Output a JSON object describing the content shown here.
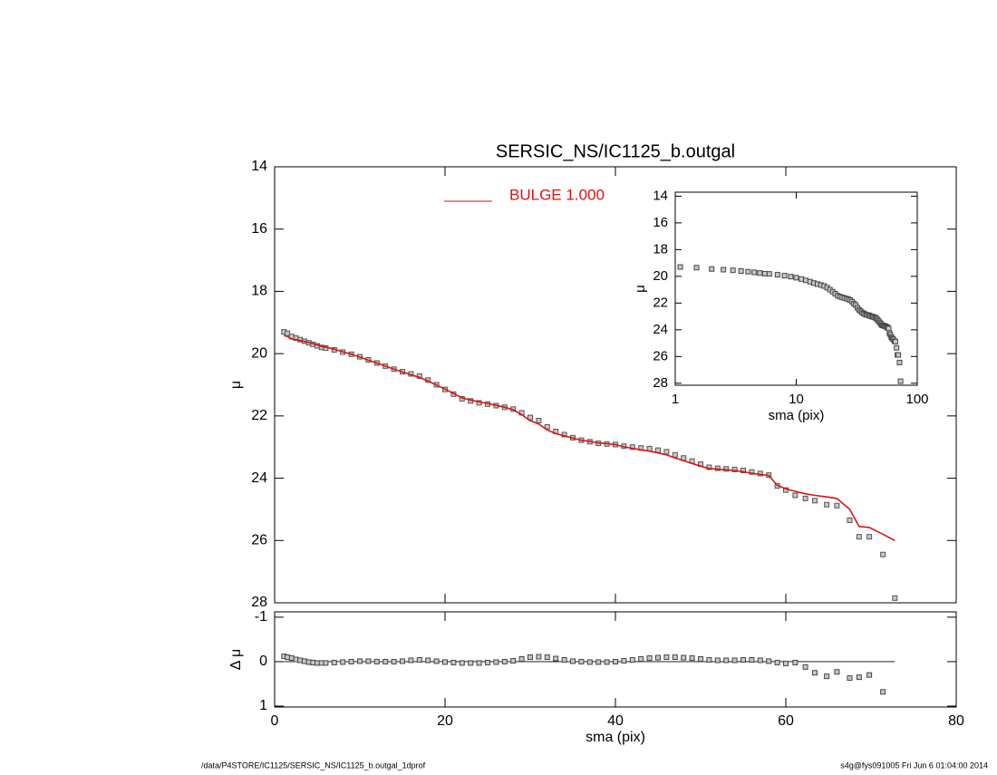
{
  "chart_data": [
    {
      "type": "scatter",
      "title": "SERSIC_NS/IC1125_b.outgal",
      "ylabel": "μ",
      "xlim": [
        0,
        80
      ],
      "xticks": [
        0,
        20,
        40,
        60,
        80
      ],
      "ylim": [
        14,
        28
      ],
      "yticks": [
        14,
        16,
        18,
        20,
        22,
        24,
        26,
        28
      ],
      "legend": "top",
      "x": [
        1.1,
        1.5,
        2,
        2.5,
        3,
        3.5,
        4,
        4.5,
        5,
        5.5,
        6,
        7,
        8,
        9,
        10,
        11,
        12,
        13,
        14,
        15,
        16,
        17,
        18,
        19,
        20,
        21,
        22,
        23,
        24,
        25,
        26,
        27,
        28,
        29,
        30,
        31,
        32,
        33,
        34,
        35,
        36,
        37,
        38,
        39,
        40,
        41,
        42,
        43,
        44,
        45,
        46,
        47,
        48,
        49,
        50,
        51,
        52,
        53,
        54,
        55,
        56,
        57,
        58,
        59,
        60,
        61.1,
        62.3,
        63.4,
        64.8,
        66,
        67.5,
        68.6,
        69.8,
        71.4,
        72.8
      ],
      "series": [
        {
          "type": "scatter",
          "color": "#555555",
          "values": [
            19.3,
            19.35,
            19.45,
            19.5,
            19.55,
            19.6,
            19.65,
            19.7,
            19.75,
            19.8,
            19.82,
            19.88,
            19.95,
            20.02,
            20.1,
            20.2,
            20.3,
            20.4,
            20.5,
            20.58,
            20.65,
            20.72,
            20.85,
            21.0,
            21.15,
            21.3,
            21.45,
            21.52,
            21.58,
            21.62,
            21.67,
            21.72,
            21.78,
            21.9,
            22.05,
            22.15,
            22.35,
            22.5,
            22.6,
            22.7,
            22.78,
            22.83,
            22.88,
            22.9,
            22.92,
            22.97,
            23.0,
            23.03,
            23.05,
            23.1,
            23.15,
            23.25,
            23.35,
            23.45,
            23.55,
            23.65,
            23.68,
            23.7,
            23.72,
            23.75,
            23.8,
            23.85,
            23.9,
            24.25,
            24.38,
            24.55,
            24.65,
            24.72,
            24.85,
            24.88,
            25.35,
            25.88,
            25.88,
            26.45,
            27.85
          ]
        },
        {
          "type": "line",
          "name": "BULGE  1.000",
          "color": "#e01010",
          "values": [
            19.42,
            19.45,
            19.53,
            19.55,
            19.58,
            19.61,
            19.64,
            19.68,
            19.72,
            19.77,
            19.79,
            19.86,
            19.94,
            20.02,
            20.11,
            20.21,
            20.3,
            20.4,
            20.5,
            20.59,
            20.68,
            20.76,
            20.88,
            21.01,
            21.14,
            21.28,
            21.42,
            21.49,
            21.55,
            21.6,
            21.66,
            21.72,
            21.8,
            21.96,
            22.15,
            22.26,
            22.45,
            22.57,
            22.64,
            22.71,
            22.78,
            22.82,
            22.87,
            22.89,
            22.92,
            22.99,
            23.04,
            23.09,
            23.13,
            23.19,
            23.25,
            23.35,
            23.44,
            23.53,
            23.61,
            23.69,
            23.71,
            23.73,
            23.75,
            23.79,
            23.84,
            23.88,
            23.91,
            24.23,
            24.34,
            24.42,
            24.5,
            24.55,
            24.6,
            24.65,
            25.0,
            25.55,
            25.58,
            25.8,
            26.0
          ]
        }
      ]
    },
    {
      "type": "scatter",
      "xlabel": "sma (pix)",
      "ylabel": "μ",
      "xlog": true,
      "xlim": [
        1,
        100
      ],
      "xticks": [
        1,
        10,
        100
      ],
      "ylim": [
        13.7,
        28.15
      ],
      "yticks": [
        14,
        16,
        18,
        20,
        22,
        24,
        26,
        28
      ],
      "x": [
        1.1,
        1.5,
        2,
        2.5,
        3,
        3.5,
        4,
        4.5,
        5,
        5.5,
        6,
        7,
        8,
        9,
        10,
        11,
        12,
        13,
        14,
        15,
        16,
        17,
        18,
        19,
        20,
        21,
        22,
        23,
        24,
        25,
        26,
        27,
        28,
        29,
        30,
        31,
        32,
        33,
        34,
        35,
        36,
        37,
        38,
        39,
        40,
        41,
        42,
        43,
        44,
        45,
        46,
        47,
        48,
        49,
        50,
        51,
        52,
        53,
        54,
        55,
        56,
        57,
        58,
        59,
        60,
        61.1,
        62.3,
        63.4,
        64.8,
        66,
        67.5,
        68.6,
        69.8,
        71.4,
        72.8
      ],
      "series": [
        {
          "type": "scatter",
          "color": "#444444",
          "values": [
            19.3,
            19.35,
            19.45,
            19.5,
            19.55,
            19.6,
            19.65,
            19.7,
            19.75,
            19.8,
            19.82,
            19.88,
            19.95,
            20.02,
            20.1,
            20.2,
            20.3,
            20.4,
            20.5,
            20.58,
            20.65,
            20.72,
            20.85,
            21.0,
            21.15,
            21.3,
            21.45,
            21.52,
            21.58,
            21.62,
            21.67,
            21.72,
            21.78,
            21.9,
            22.05,
            22.15,
            22.35,
            22.5,
            22.6,
            22.7,
            22.78,
            22.83,
            22.88,
            22.9,
            22.92,
            22.97,
            23.0,
            23.03,
            23.05,
            23.1,
            23.15,
            23.25,
            23.35,
            23.45,
            23.55,
            23.65,
            23.68,
            23.7,
            23.72,
            23.75,
            23.8,
            23.85,
            23.9,
            24.25,
            24.38,
            24.55,
            24.65,
            24.72,
            24.85,
            24.88,
            25.35,
            25.88,
            25.88,
            26.45,
            27.85
          ]
        }
      ]
    },
    {
      "type": "scatter",
      "xlabel": "sma (pix)",
      "ylabel": "Δ μ",
      "reference_line": 0,
      "xlim": [
        0,
        80
      ],
      "xticks": [
        0,
        20,
        40,
        60,
        80
      ],
      "ylim": [
        -1.12,
        1.02
      ],
      "yticks": [
        -1,
        0,
        1
      ],
      "x": [
        1.1,
        1.5,
        2,
        2.5,
        3,
        3.5,
        4,
        4.5,
        5,
        5.5,
        6,
        7,
        8,
        9,
        10,
        11,
        12,
        13,
        14,
        15,
        16,
        17,
        18,
        19,
        20,
        21,
        22,
        23,
        24,
        25,
        26,
        27,
        28,
        29,
        30,
        31,
        32,
        33,
        34,
        35,
        36,
        37,
        38,
        39,
        40,
        41,
        42,
        43,
        44,
        45,
        46,
        47,
        48,
        49,
        50,
        51,
        52,
        53,
        54,
        55,
        56,
        57,
        58,
        59,
        60,
        61.1,
        62.3,
        63.4,
        64.8,
        66,
        67.5,
        68.6,
        69.8,
        71.4,
        72.8
      ],
      "series": [
        {
          "type": "scatter",
          "color": "#444444",
          "values": [
            -0.12,
            -0.1,
            -0.08,
            -0.05,
            -0.03,
            -0.01,
            0.01,
            0.02,
            0.03,
            0.03,
            0.03,
            0.02,
            0.01,
            0,
            -0.01,
            -0.01,
            0,
            0,
            0,
            -0.01,
            -0.03,
            -0.04,
            -0.03,
            -0.01,
            0.01,
            0.02,
            0.03,
            0.03,
            0.03,
            0.02,
            0.01,
            0,
            -0.02,
            -0.06,
            -0.1,
            -0.11,
            -0.1,
            -0.07,
            -0.04,
            -0.01,
            0,
            0.01,
            0.01,
            0.01,
            0,
            -0.02,
            -0.04,
            -0.06,
            -0.08,
            -0.09,
            -0.1,
            -0.1,
            -0.09,
            -0.08,
            -0.06,
            -0.04,
            -0.03,
            -0.03,
            -0.03,
            -0.04,
            -0.04,
            -0.03,
            -0.01,
            0.02,
            0.04,
            0.02,
            0.12,
            0.25,
            0.33,
            0.23,
            0.37,
            0.35,
            0.3,
            0.68,
            null
          ]
        }
      ]
    }
  ],
  "footer": {
    "left": "/data/P4STORE/IC1125/SERSIC_NS/IC1125_b.outgal_1dprof",
    "right": "s4g@fys091005  Fri Jun  6 01:04:00 2014"
  }
}
